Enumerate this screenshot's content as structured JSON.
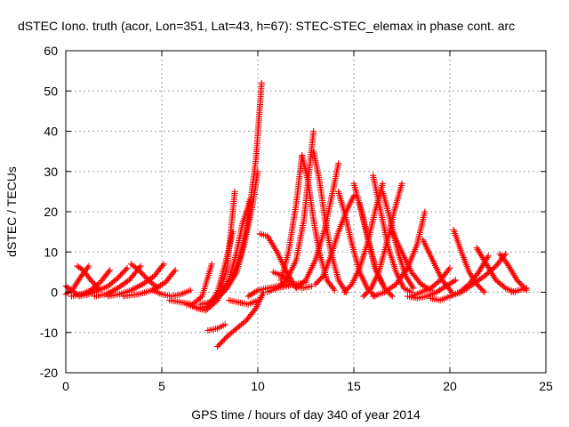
{
  "chart_data": {
    "type": "scatter",
    "title": "dSTEC Iono. truth (acor, Lon=351, Lat=43, h=67): STEC-STEC_elemax in phase cont. arc",
    "xlabel": "GPS time / hours of day 340 of year 2014",
    "ylabel": "dSTEC  / TECUs",
    "xlim": [
      0,
      25
    ],
    "ylim": [
      -20,
      60
    ],
    "xticks": [
      0,
      5,
      10,
      15,
      20,
      25
    ],
    "yticks": [
      -20,
      -10,
      0,
      10,
      20,
      30,
      40,
      50,
      60
    ],
    "grid": true,
    "series_color": "#ff0000",
    "marker": "plus",
    "arcs": [
      {
        "x": [
          0.0,
          0.3,
          0.6,
          0.9,
          1.2,
          1.5
        ],
        "y": [
          1.5,
          0.5,
          -0.5,
          -0.5,
          0.0,
          1.0
        ]
      },
      {
        "x": [
          0.0,
          0.4,
          0.8,
          1.2
        ],
        "y": [
          -0.5,
          1.0,
          4.0,
          6.5
        ]
      },
      {
        "x": [
          0.3,
          0.8,
          1.3,
          1.8,
          2.3
        ],
        "y": [
          -1.0,
          -0.5,
          0.5,
          2.5,
          5.5
        ]
      },
      {
        "x": [
          0.7,
          1.2,
          1.7,
          2.2,
          2.7,
          3.2
        ],
        "y": [
          -1.0,
          -0.5,
          0.5,
          1.5,
          3.5,
          6.0
        ]
      },
      {
        "x": [
          0.6,
          0.9,
          1.3,
          1.7
        ],
        "y": [
          6.5,
          5.5,
          3.0,
          1.0
        ]
      },
      {
        "x": [
          1.5,
          2.1,
          2.7,
          3.3,
          3.9
        ],
        "y": [
          -1.0,
          -0.5,
          1.0,
          3.0,
          6.5
        ]
      },
      {
        "x": [
          2.2,
          2.8,
          3.4,
          4.0,
          4.6,
          5.1
        ],
        "y": [
          -1.0,
          -0.5,
          0.5,
          2.0,
          4.0,
          7.0
        ]
      },
      {
        "x": [
          3.4,
          3.8,
          4.3,
          4.8
        ],
        "y": [
          7.0,
          5.5,
          3.0,
          1.0
        ]
      },
      {
        "x": [
          3.0,
          3.8,
          4.5,
          5.2,
          5.7
        ],
        "y": [
          -1.0,
          -0.5,
          0.5,
          2.5,
          5.5
        ]
      },
      {
        "x": [
          4.5,
          5.0,
          5.5,
          6.0,
          6.5
        ],
        "y": [
          0.5,
          -0.5,
          -1.0,
          -0.5,
          0.5
        ]
      },
      {
        "x": [
          5.4,
          6.0,
          6.6,
          7.1,
          7.6
        ],
        "y": [
          -2.0,
          -2.5,
          -3.0,
          -1.0,
          7.0
        ]
      },
      {
        "x": [
          6.3,
          6.9,
          7.4,
          7.9,
          8.3,
          8.7
        ],
        "y": [
          -3.0,
          -4.0,
          -3.5,
          0.0,
          7.0,
          15.0
        ]
      },
      {
        "x": [
          6.8,
          7.3,
          7.9,
          8.4,
          8.8
        ],
        "y": [
          -4.0,
          -4.5,
          -2.0,
          6.0,
          25.0
        ]
      },
      {
        "x": [
          7.0,
          7.5,
          8.0,
          8.5,
          8.9,
          9.2,
          9.6
        ],
        "y": [
          -3.0,
          -2.5,
          -1.0,
          3.0,
          10.0,
          17.0,
          23.0
        ]
      },
      {
        "x": [
          7.4,
          7.9,
          8.4,
          8.9,
          9.3,
          9.7,
          10.0
        ],
        "y": [
          -3.0,
          -1.5,
          1.0,
          5.0,
          12.0,
          21.0,
          30.0
        ]
      },
      {
        "x": [
          7.6,
          8.1,
          8.6,
          9.1,
          9.5,
          9.9,
          10.2
        ],
        "y": [
          -2.0,
          0.0,
          3.0,
          9.0,
          18.0,
          33.0,
          52.0
        ]
      },
      {
        "x": [
          7.4,
          7.9,
          8.3
        ],
        "y": [
          -9.5,
          -9.0,
          -8.0
        ]
      },
      {
        "x": [
          7.9,
          8.4,
          8.9,
          9.4,
          9.9,
          10.3
        ],
        "y": [
          -13.5,
          -11.0,
          -9.0,
          -7.0,
          -4.0,
          0.0
        ]
      },
      {
        "x": [
          8.5,
          9.0,
          9.5,
          10.0
        ],
        "y": [
          -2.0,
          -2.5,
          -3.0,
          -2.0
        ]
      },
      {
        "x": [
          9.5,
          10.0,
          10.5,
          11.0,
          11.5
        ],
        "y": [
          -1.0,
          0.5,
          1.0,
          1.5,
          2.0
        ]
      },
      {
        "x": [
          10.1,
          10.5,
          11.0,
          11.5,
          12.0
        ],
        "y": [
          14.5,
          14.0,
          10.0,
          5.0,
          1.0
        ]
      },
      {
        "x": [
          10.5,
          11.0,
          11.5,
          12.0,
          12.5
        ],
        "y": [
          0.0,
          1.0,
          1.5,
          2.0,
          2.5
        ]
      },
      {
        "x": [
          10.8,
          11.3,
          11.8,
          12.3,
          12.8
        ],
        "y": [
          5.0,
          4.0,
          2.0,
          1.0,
          1.5
        ]
      },
      {
        "x": [
          11.0,
          11.5,
          12.0,
          12.4,
          12.9
        ],
        "y": [
          1.0,
          3.0,
          8.0,
          18.0,
          40.0
        ]
      },
      {
        "x": [
          11.2,
          11.6,
          12.0,
          12.3
        ],
        "y": [
          3.0,
          10.0,
          22.0,
          34.0
        ]
      },
      {
        "x": [
          12.3,
          12.6,
          12.9,
          13.2,
          13.6,
          14.0
        ],
        "y": [
          34.0,
          28.0,
          18.0,
          10.0,
          3.0,
          0.5
        ]
      },
      {
        "x": [
          12.9,
          13.2,
          13.5,
          13.8,
          14.2,
          14.6
        ],
        "y": [
          35.0,
          28.0,
          18.0,
          10.0,
          3.0,
          0.0
        ]
      },
      {
        "x": [
          12.0,
          12.5,
          13.0,
          13.5,
          13.9,
          14.2
        ],
        "y": [
          1.0,
          3.0,
          8.0,
          16.0,
          25.0,
          32.0
        ]
      },
      {
        "x": [
          13.0,
          13.4,
          13.8,
          14.2,
          14.6,
          15.0
        ],
        "y": [
          2.0,
          4.0,
          9.0,
          15.0,
          20.0,
          24.0
        ]
      },
      {
        "x": [
          14.2,
          14.5,
          14.9,
          15.3,
          15.7,
          16.1
        ],
        "y": [
          25.0,
          20.0,
          12.0,
          5.0,
          1.0,
          -1.0
        ]
      },
      {
        "x": [
          14.5,
          14.9,
          15.3,
          15.7,
          16.1,
          16.5
        ],
        "y": [
          0.0,
          2.0,
          6.0,
          12.0,
          20.0,
          27.0
        ]
      },
      {
        "x": [
          15.0,
          15.4,
          15.8,
          16.2,
          16.6,
          17.0
        ],
        "y": [
          27.0,
          20.0,
          12.0,
          5.0,
          1.0,
          -1.0
        ]
      },
      {
        "x": [
          15.5,
          15.9,
          16.3,
          16.7,
          17.1,
          17.5
        ],
        "y": [
          -1.0,
          1.0,
          5.0,
          12.0,
          20.0,
          27.0
        ]
      },
      {
        "x": [
          16.0,
          16.4,
          16.8,
          17.2,
          17.6,
          18.0
        ],
        "y": [
          29.0,
          20.0,
          11.0,
          5.0,
          1.0,
          0.0
        ]
      },
      {
        "x": [
          16.5,
          16.9,
          17.3,
          17.7,
          18.1
        ],
        "y": [
          25.0,
          18.0,
          10.0,
          4.0,
          1.0
        ]
      },
      {
        "x": [
          15.3,
          15.7,
          16.1,
          16.5
        ],
        "y": [
          22.0,
          14.0,
          6.0,
          2.0
        ]
      },
      {
        "x": [
          17.0,
          17.5,
          18.0,
          18.5,
          19.0
        ],
        "y": [
          15.0,
          10.0,
          5.0,
          2.0,
          0.5
        ]
      },
      {
        "x": [
          16.0,
          16.6,
          17.2,
          17.8,
          18.3,
          18.7
        ],
        "y": [
          -1.0,
          0.0,
          2.0,
          6.0,
          12.0,
          20.0
        ]
      },
      {
        "x": [
          18.0,
          18.5,
          19.0,
          19.5,
          20.0
        ],
        "y": [
          -1.0,
          0.0,
          1.0,
          3.0,
          6.0
        ]
      },
      {
        "x": [
          17.8,
          18.3,
          18.8,
          19.3,
          19.8,
          20.3
        ],
        "y": [
          -1.0,
          -1.5,
          -1.0,
          0.0,
          1.5,
          3.0
        ]
      },
      {
        "x": [
          18.6,
          19.1,
          19.6,
          20.1
        ],
        "y": [
          13.0,
          8.0,
          3.0,
          0.0
        ]
      },
      {
        "x": [
          19.0,
          19.5,
          20.0,
          20.5,
          21.0,
          21.5,
          22.0
        ],
        "y": [
          -1.5,
          -2.0,
          -1.0,
          0.0,
          2.0,
          5.0,
          9.0
        ]
      },
      {
        "x": [
          20.2,
          20.6,
          21.0,
          21.4,
          21.8
        ],
        "y": [
          15.5,
          10.0,
          5.0,
          2.0,
          0.0
        ]
      },
      {
        "x": [
          20.0,
          20.6,
          21.2,
          21.8,
          22.4,
          22.9
        ],
        "y": [
          -1.0,
          0.0,
          2.0,
          4.0,
          6.5,
          9.5
        ]
      },
      {
        "x": [
          21.4,
          21.9,
          22.4,
          22.9,
          23.4
        ],
        "y": [
          11.0,
          7.0,
          3.0,
          1.0,
          0.0
        ]
      },
      {
        "x": [
          22.6,
          23.0,
          23.5,
          24.0
        ],
        "y": [
          9.5,
          7.0,
          3.0,
          0.5
        ]
      },
      {
        "x": [
          23.2,
          23.6,
          24.0
        ],
        "y": [
          0.0,
          0.5,
          1.0
        ]
      }
    ]
  }
}
